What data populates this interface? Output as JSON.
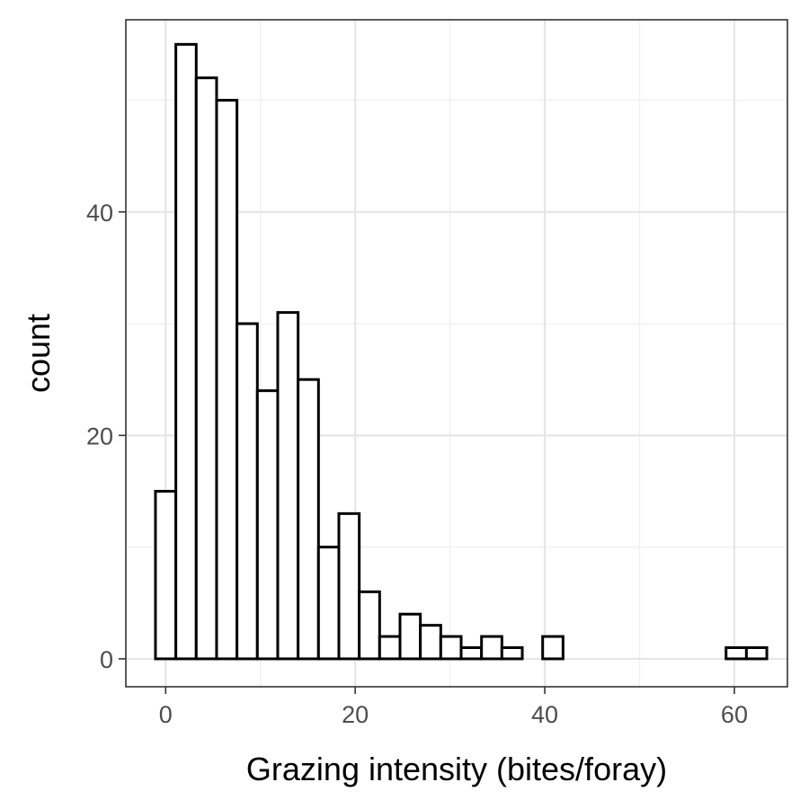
{
  "chart_data": {
    "type": "bar",
    "subtype": "histogram",
    "title": "",
    "xlabel": "Grazing intensity (bites/foray)",
    "ylabel": "count",
    "xlim": [
      -4.2,
      65.6
    ],
    "ylim": [
      -2.5,
      57.2
    ],
    "x_ticks": [
      0,
      20,
      40,
      60
    ],
    "y_ticks": [
      0,
      20,
      40
    ],
    "x_minor_ticks": [
      10,
      30,
      50
    ],
    "y_minor_ticks": [
      10,
      30,
      50
    ],
    "bin_width": 2.15,
    "bin_start": -1.075,
    "values": [
      15,
      55,
      52,
      50,
      30,
      24,
      31,
      25,
      10,
      13,
      6,
      2,
      4,
      3,
      2,
      1,
      2,
      1,
      0,
      2,
      0,
      0,
      0,
      0,
      0,
      0,
      0,
      0,
      1,
      1
    ],
    "grid": true,
    "legend": "none"
  },
  "colors": {
    "bar_fill": "#ffffff",
    "bar_stroke": "#000000",
    "grid": "#e6e6e6",
    "axis_text": "#4d4d4d",
    "title_text": "#000000"
  }
}
